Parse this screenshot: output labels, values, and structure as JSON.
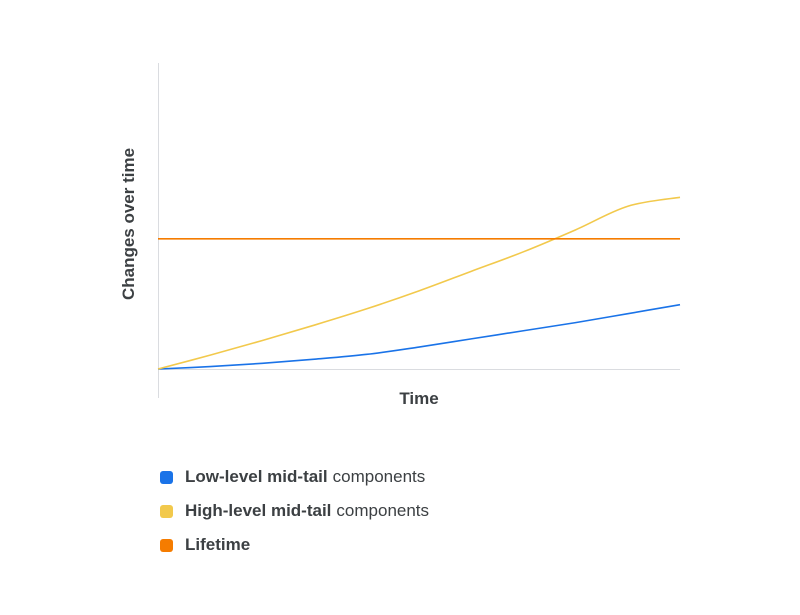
{
  "chart_data": {
    "type": "line",
    "xlabel": "Time",
    "ylabel": "Changes over time",
    "series": [
      {
        "name": "Low-level mid-tail components",
        "color": "#1a73e8",
        "x": [
          0,
          0.1,
          0.2,
          0.3,
          0.4,
          0.5,
          0.6,
          0.7,
          0.8,
          0.9,
          1.0
        ],
        "y": [
          0,
          0.015,
          0.035,
          0.06,
          0.09,
          0.135,
          0.185,
          0.235,
          0.285,
          0.34,
          0.395
        ]
      },
      {
        "name": "High-level mid-tail components",
        "color": "#f2c94c",
        "x": [
          0,
          0.1,
          0.2,
          0.3,
          0.4,
          0.5,
          0.6,
          0.7,
          0.8,
          0.9,
          1.0
        ],
        "y": [
          0,
          0.085,
          0.175,
          0.27,
          0.37,
          0.48,
          0.6,
          0.72,
          0.855,
          1.0,
          1.055
        ]
      },
      {
        "name": "Lifetime",
        "color": "#f57c00",
        "x": [
          0,
          1.0
        ],
        "y": [
          0.8,
          0.8
        ]
      }
    ],
    "xlim": [
      0,
      1.0
    ],
    "ylim": [
      0,
      1.88
    ],
    "grid": false,
    "legend_position": "bottom-left"
  },
  "legend": {
    "items": [
      {
        "bold": "Low-level mid-tail",
        "normal": "components",
        "color": "#1a73e8"
      },
      {
        "bold": "High-level mid-tail",
        "normal": "components",
        "color": "#f2c94c"
      },
      {
        "bold": "Lifetime",
        "normal": "",
        "color": "#f57c00"
      }
    ]
  }
}
